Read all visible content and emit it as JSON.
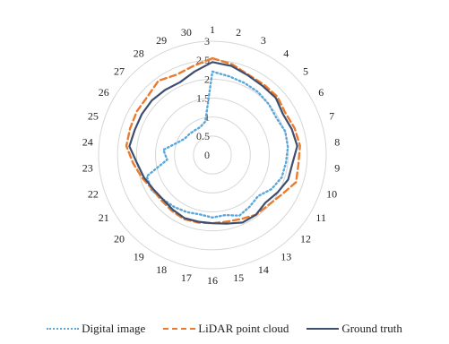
{
  "chart_data": {
    "type": "radar",
    "categories": [
      "1",
      "2",
      "3",
      "4",
      "5",
      "6",
      "7",
      "8",
      "9",
      "10",
      "11",
      "12",
      "13",
      "14",
      "15",
      "16",
      "17",
      "18",
      "19",
      "20",
      "21",
      "22",
      "23",
      "24",
      "25",
      "26",
      "27",
      "28",
      "29",
      "30"
    ],
    "radial_ticks": [
      "0",
      "0.5",
      "1",
      "1.5",
      "2",
      "2.5",
      "3"
    ],
    "rlim": [
      0,
      3
    ],
    "grid": true,
    "legend_position": "bottom",
    "series": [
      {
        "name": "Digital image",
        "color": "#5ba7da",
        "style": "dotted",
        "values": [
          2.2,
          2.12,
          2.08,
          2.05,
          2.0,
          1.95,
          2.02,
          2.0,
          1.95,
          1.92,
          1.8,
          1.62,
          1.68,
          1.75,
          1.62,
          1.65,
          1.6,
          1.65,
          1.7,
          1.75,
          1.85,
          1.82,
          1.2,
          1.3,
          1.0,
          0.85,
          0.82,
          0.8,
          0.8,
          0.9
        ]
      },
      {
        "name": "LiDAR point cloud",
        "color": "#ea7b2f",
        "style": "dashed",
        "values": [
          2.55,
          2.45,
          2.32,
          2.3,
          2.3,
          2.22,
          2.28,
          2.32,
          2.28,
          2.32,
          2.1,
          1.98,
          1.95,
          1.85,
          1.8,
          1.8,
          1.82,
          1.85,
          1.82,
          1.8,
          1.82,
          1.95,
          2.1,
          2.28,
          2.28,
          2.3,
          2.3,
          2.42,
          2.32,
          2.4
        ]
      },
      {
        "name": "Ground truth",
        "color": "#3d4f70",
        "style": "solid",
        "values": [
          2.45,
          2.4,
          2.3,
          2.25,
          2.25,
          2.15,
          2.2,
          2.25,
          2.12,
          2.1,
          1.98,
          1.88,
          1.95,
          1.95,
          1.85,
          1.8,
          1.8,
          1.82,
          1.78,
          1.75,
          1.8,
          1.9,
          2.0,
          2.2,
          2.15,
          2.15,
          2.15,
          2.12,
          2.1,
          2.25
        ]
      }
    ]
  }
}
